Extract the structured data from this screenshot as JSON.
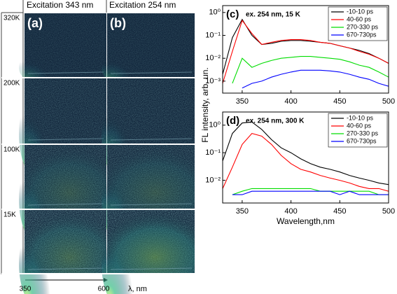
{
  "panels": {
    "col_headers": [
      "Excitation 343 nm",
      "Excitation 254 nm"
    ],
    "col_tags": [
      "(a)",
      "(b)"
    ],
    "row_labels": [
      "320K",
      "200K",
      "100K",
      "15K"
    ],
    "axis_start": 350,
    "axis_end": 600,
    "axis_label": "λ, nm"
  },
  "chart_data": [
    {
      "type": "line",
      "title": "(c)",
      "annotation": "ex. 254 nm, 15 K",
      "y_label": "FL intensity, arb. un.",
      "x": [
        330,
        340,
        350,
        360,
        370,
        380,
        390,
        400,
        410,
        420,
        430,
        440,
        450,
        460,
        470,
        480,
        490,
        500
      ],
      "xlim": [
        330,
        500
      ],
      "xticks": [
        350,
        400,
        450,
        500
      ],
      "ylim": [
        0.0003,
        2
      ],
      "log_y": true,
      "yticks": [
        {
          "value": 0.001,
          "label": "10⁻³"
        },
        {
          "value": 0.01,
          "label": "10⁻²"
        },
        {
          "value": 0.1,
          "label": "10⁻¹"
        },
        {
          "value": 1,
          "label": "10⁰"
        }
      ],
      "legend": "upper right",
      "series": [
        {
          "name": "-10-10 ps",
          "color": "#000000",
          "values": [
            0.002,
            0.08,
            0.5,
            0.1,
            0.04,
            0.045,
            0.055,
            0.06,
            0.06,
            0.055,
            0.05,
            0.045,
            0.035,
            0.028,
            0.022,
            0.016,
            0.01,
            0.006
          ]
        },
        {
          "name": "40-60 ps",
          "color": "#ff0000",
          "values": [
            0.0008,
            0.02,
            0.45,
            0.12,
            0.04,
            0.05,
            0.06,
            0.065,
            0.065,
            0.06,
            0.05,
            0.045,
            0.035,
            0.028,
            0.02,
            0.015,
            0.01,
            0.006
          ]
        },
        {
          "name": "270-330 ps",
          "color": "#00dd00",
          "values": [
            null,
            0.0008,
            0.01,
            0.004,
            0.006,
            0.008,
            0.01,
            0.011,
            0.012,
            0.012,
            0.011,
            0.01,
            0.009,
            0.007,
            0.005,
            0.004,
            0.0025,
            0.0015
          ]
        },
        {
          "name": "670-730ps",
          "color": "#0000ff",
          "values": [
            null,
            null,
            0.0005,
            0.0008,
            0.001,
            0.0015,
            0.002,
            0.0025,
            0.003,
            0.003,
            0.003,
            0.0028,
            0.0025,
            0.002,
            0.0015,
            0.0012,
            0.0008,
            0.0006
          ]
        }
      ]
    },
    {
      "type": "line",
      "title": "(d)",
      "annotation": "ex. 254 nm, 300 K",
      "x_label": "Wavelength,nm",
      "x": [
        330,
        340,
        350,
        360,
        370,
        380,
        390,
        400,
        410,
        420,
        430,
        440,
        450,
        460,
        470,
        480,
        490,
        500
      ],
      "xlim": [
        330,
        500
      ],
      "xticks": [
        350,
        400,
        450,
        500
      ],
      "ylim": [
        0.0015,
        3
      ],
      "log_y": true,
      "yticks": [
        {
          "value": 0.01,
          "label": "10⁻²"
        },
        {
          "value": 0.1,
          "label": "10⁻¹"
        },
        {
          "value": 1,
          "label": "10⁰"
        }
      ],
      "legend": "upper right",
      "series": [
        {
          "name": "-10-10 ps",
          "color": "#000000",
          "values": [
            0.05,
            0.5,
            1.2,
            1.3,
            0.7,
            0.3,
            0.15,
            0.1,
            0.06,
            0.04,
            0.03,
            0.025,
            0.02,
            0.015,
            0.012,
            0.01,
            0.008,
            0.007
          ]
        },
        {
          "name": "40-60 ps",
          "color": "#ff0000",
          "values": [
            0.005,
            0.03,
            0.2,
            0.5,
            0.4,
            0.2,
            0.08,
            0.04,
            0.025,
            0.02,
            0.015,
            0.012,
            0.01,
            0.008,
            0.006,
            0.005,
            0.005,
            0.004
          ]
        },
        {
          "name": "270-330 ps",
          "color": "#00dd00",
          "values": [
            null,
            0.003,
            0.004,
            0.005,
            0.005,
            0.005,
            0.005,
            0.005,
            0.005,
            0.005,
            0.004,
            0.004,
            0.004,
            0.004,
            0.004,
            0.004,
            0.003,
            0.003
          ]
        },
        {
          "name": "670-730ps",
          "color": "#0000ff",
          "values": [
            null,
            0.003,
            0.003,
            0.004,
            0.004,
            0.004,
            0.004,
            0.004,
            0.004,
            0.004,
            0.004,
            0.004,
            0.003,
            0.004,
            0.003,
            0.003,
            0.003,
            0.003
          ]
        }
      ]
    }
  ]
}
